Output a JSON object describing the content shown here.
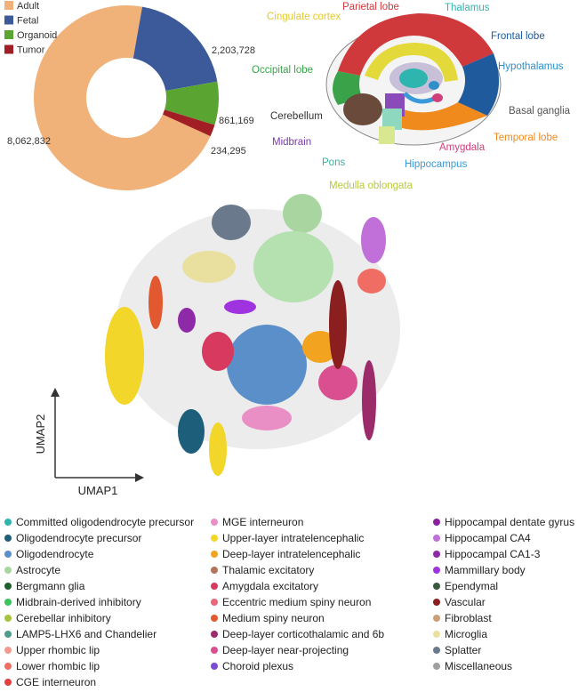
{
  "chart_data": {
    "type": "pie",
    "donut": true,
    "categories": [
      "Adult",
      "Fetal",
      "Organoid",
      "Tumor"
    ],
    "values": [
      8062832,
      2203728,
      861169,
      234295
    ],
    "value_labels": [
      "8,062,832",
      "2,203,728",
      "861,169",
      "234,295"
    ],
    "colors": [
      "#f1b27a",
      "#3c5a99",
      "#5aa532",
      "#a11f24"
    ]
  },
  "brain_diagram": {
    "labels": [
      {
        "text": "Parietal lobe",
        "color": "#d0393b"
      },
      {
        "text": "Thalamus",
        "color": "#2fb5b0"
      },
      {
        "text": "Cingulate cortex",
        "color": "#e3c92a"
      },
      {
        "text": "Frontal lobe",
        "color": "#1f5a9c"
      },
      {
        "text": "Occipital lobe",
        "color": "#3aa34a"
      },
      {
        "text": "Hypothalamus",
        "color": "#2f8fc9"
      },
      {
        "text": "Basal ganglia",
        "color": "#555555"
      },
      {
        "text": "Cerebellum",
        "color": "#333333"
      },
      {
        "text": "Temporal lobe",
        "color": "#f08a1c"
      },
      {
        "text": "Amygdala",
        "color": "#d0407a"
      },
      {
        "text": "Midbrain",
        "color": "#7a3aa8"
      },
      {
        "text": "Pons",
        "color": "#3ab0a0"
      },
      {
        "text": "Hippocampus",
        "color": "#3a9ad9"
      },
      {
        "text": "Medulla oblongata",
        "color": "#b8c840"
      }
    ]
  },
  "umap": {
    "x_label": "UMAP1",
    "y_label": "UMAP2",
    "legend": [
      {
        "name": "Committed oligodendrocyte precursor",
        "color": "#2fb5b0"
      },
      {
        "name": "Oligodendrocyte precursor",
        "color": "#1d5f7a"
      },
      {
        "name": "Oligodendrocyte",
        "color": "#5b8fc9"
      },
      {
        "name": "Astrocyte",
        "color": "#a8d5a0"
      },
      {
        "name": "Bergmann glia",
        "color": "#1f5f2a"
      },
      {
        "name": "Midbrain-derived inhibitory",
        "color": "#3cc35a"
      },
      {
        "name": "Cerebellar inhibitory",
        "color": "#a6c43a"
      },
      {
        "name": "LAMP5-LHX6 and Chandelier",
        "color": "#4f9c8c"
      },
      {
        "name": "Upper rhombic lip",
        "color": "#f29a8e"
      },
      {
        "name": "Lower rhombic lip",
        "color": "#ef6d63"
      },
      {
        "name": "CGE interneuron",
        "color": "#e43f3f"
      },
      {
        "name": "MGE interneuron",
        "color": "#ea8fc6"
      },
      {
        "name": "Upper-layer intratelencephalic",
        "color": "#f2d62a"
      },
      {
        "name": "Deep-layer intratelencephalic",
        "color": "#f2a320"
      },
      {
        "name": "Thalamic excitatory",
        "color": "#b5735a"
      },
      {
        "name": "Amygdala excitatory",
        "color": "#d73a5e"
      },
      {
        "name": "Eccentric medium spiny neuron",
        "color": "#e8677a"
      },
      {
        "name": "Medium spiny neuron",
        "color": "#e2592f"
      },
      {
        "name": "Deep-layer corticothalamic and 6b",
        "color": "#9c2b6a"
      },
      {
        "name": "Deep-layer near-projecting",
        "color": "#d94f8f"
      },
      {
        "name": "Choroid plexus",
        "color": "#7a4bd3"
      },
      {
        "name": "Hippocampal dentate gyrus",
        "color": "#8a1fa0"
      },
      {
        "name": "Hippocampal CA4",
        "color": "#c070d8"
      },
      {
        "name": "Hippocampal CA1-3",
        "color": "#8e2aa8"
      },
      {
        "name": "Mammillary body",
        "color": "#a033e0"
      },
      {
        "name": "Ependymal",
        "color": "#3a5a40"
      },
      {
        "name": "Vascular",
        "color": "#8b1f1f"
      },
      {
        "name": "Fibroblast",
        "color": "#caa079"
      },
      {
        "name": "Microglia",
        "color": "#e9e0a0"
      },
      {
        "name": "Splatter",
        "color": "#6a7a8c"
      },
      {
        "name": "Miscellaneous",
        "color": "#a0a0a0"
      }
    ]
  }
}
